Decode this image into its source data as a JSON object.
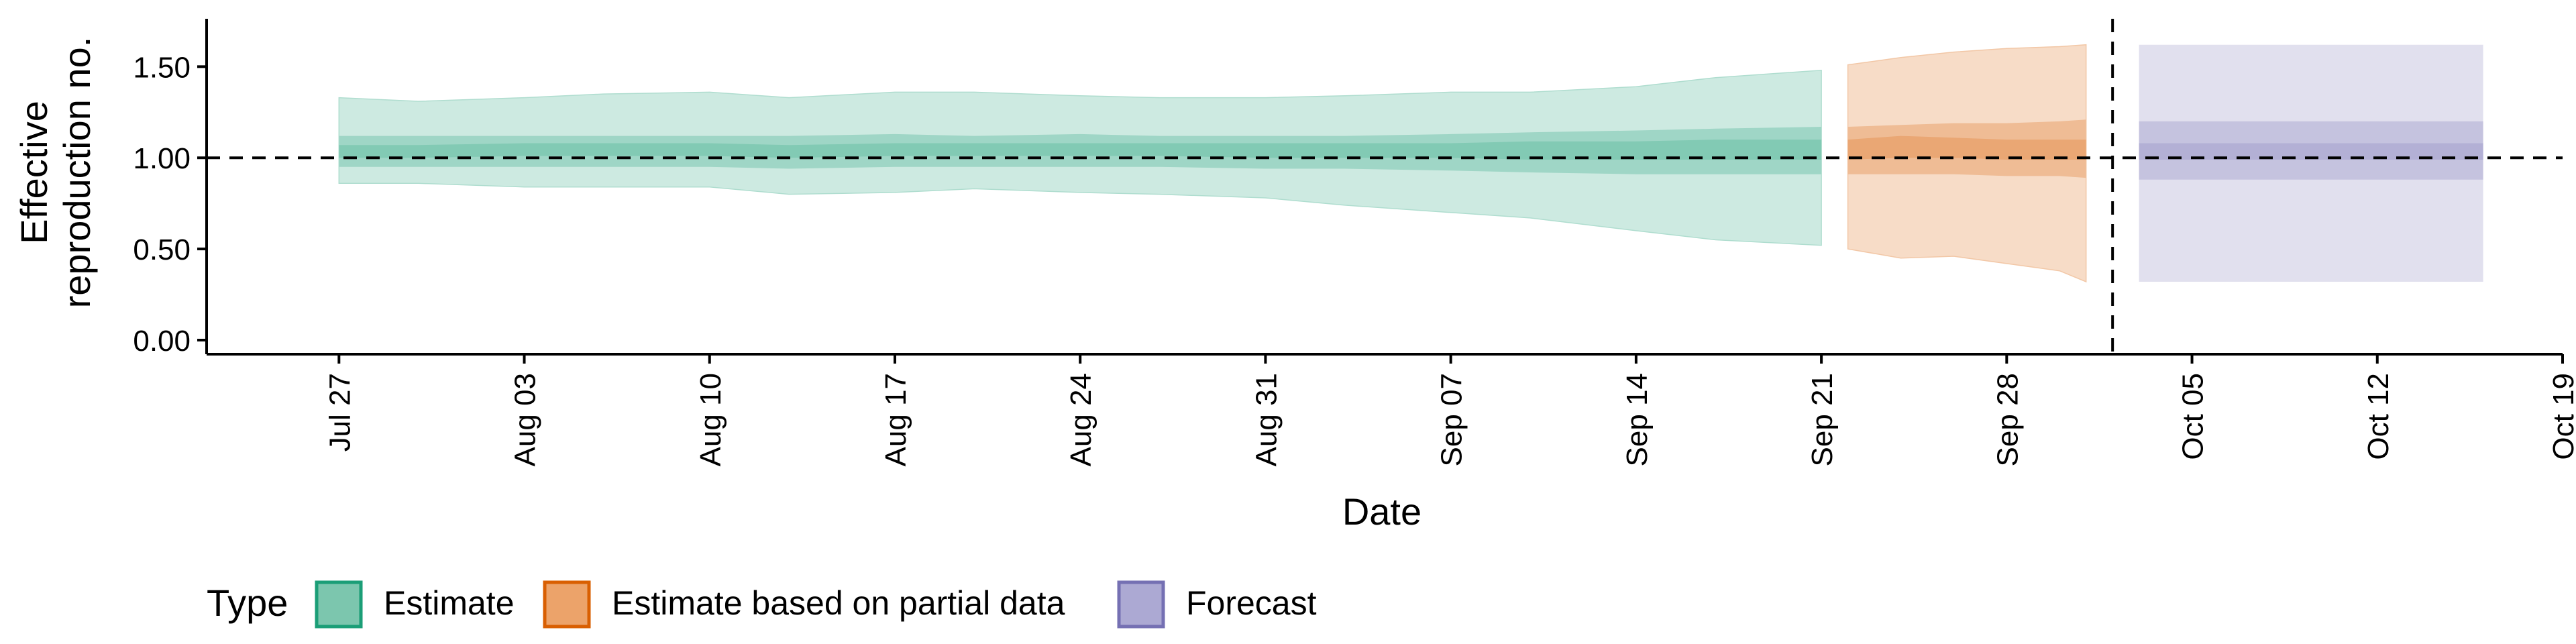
{
  "chart_data": {
    "type": "area",
    "title": "",
    "xlabel": "Date",
    "ylabel_lines": [
      "Effective",
      "reproduction no."
    ],
    "ylim": [
      0,
      1.7
    ],
    "yticks": [
      0.0,
      0.5,
      1.0,
      1.5
    ],
    "ytick_labels": [
      "0.00",
      "0.50",
      "1.00",
      "1.50"
    ],
    "xlim": [
      "2020-07-22",
      "2020-10-19"
    ],
    "xticks": [
      "2020-07-27",
      "2020-08-03",
      "2020-08-10",
      "2020-08-17",
      "2020-08-24",
      "2020-08-31",
      "2020-09-07",
      "2020-09-14",
      "2020-09-21",
      "2020-09-28",
      "2020-10-05",
      "2020-10-12",
      "2020-10-19"
    ],
    "xtick_labels": [
      "Jul 27",
      "Aug 03",
      "Aug 10",
      "Aug 17",
      "Aug 24",
      "Aug 31",
      "Sep 07",
      "Sep 14",
      "Sep 21",
      "Sep 28",
      "Oct 05",
      "Oct 12",
      "Oct 19"
    ],
    "reference_hline": 1.0,
    "reference_vline": "2020-10-02",
    "legend_title": "Type",
    "legend_position": "bottom",
    "series": [
      {
        "name": "Estimate",
        "color": "#1b9e77",
        "x": [
          "2020-07-27",
          "2020-07-30",
          "2020-08-03",
          "2020-08-06",
          "2020-08-10",
          "2020-08-13",
          "2020-08-17",
          "2020-08-20",
          "2020-08-24",
          "2020-08-27",
          "2020-08-31",
          "2020-09-03",
          "2020-09-07",
          "2020-09-10",
          "2020-09-14",
          "2020-09-17",
          "2020-09-21"
        ],
        "outer_lower": [
          0.86,
          0.86,
          0.84,
          0.84,
          0.84,
          0.8,
          0.81,
          0.83,
          0.81,
          0.8,
          0.78,
          0.74,
          0.7,
          0.67,
          0.6,
          0.55,
          0.52
        ],
        "outer_upper": [
          1.33,
          1.31,
          1.33,
          1.35,
          1.36,
          1.33,
          1.36,
          1.36,
          1.34,
          1.33,
          1.33,
          1.34,
          1.36,
          1.36,
          1.39,
          1.44,
          1.48
        ],
        "middle_lower": [
          0.95,
          0.95,
          0.95,
          0.95,
          0.95,
          0.94,
          0.95,
          0.95,
          0.95,
          0.95,
          0.94,
          0.94,
          0.93,
          0.92,
          0.91,
          0.91,
          0.91
        ],
        "middle_upper": [
          1.12,
          1.12,
          1.12,
          1.12,
          1.12,
          1.12,
          1.13,
          1.12,
          1.13,
          1.12,
          1.12,
          1.12,
          1.13,
          1.14,
          1.15,
          1.16,
          1.17
        ],
        "inner_lower": [
          1.0,
          1.0,
          1.01,
          1.01,
          1.01,
          1.0,
          1.01,
          1.01,
          1.01,
          1.01,
          1.0,
          1.0,
          1.0,
          0.99,
          0.99,
          0.99,
          0.99
        ],
        "inner_upper": [
          1.07,
          1.07,
          1.08,
          1.08,
          1.08,
          1.07,
          1.08,
          1.08,
          1.08,
          1.08,
          1.08,
          1.08,
          1.08,
          1.09,
          1.09,
          1.1,
          1.1
        ]
      },
      {
        "name": "Estimate based on partial data",
        "color": "#d95f02",
        "x": [
          "2020-09-22",
          "2020-09-24",
          "2020-09-26",
          "2020-09-28",
          "2020-09-30",
          "2020-10-01"
        ],
        "outer_lower": [
          0.5,
          0.45,
          0.46,
          0.42,
          0.38,
          0.32
        ],
        "outer_upper": [
          1.51,
          1.55,
          1.58,
          1.6,
          1.61,
          1.62
        ],
        "middle_lower": [
          0.91,
          0.91,
          0.91,
          0.9,
          0.9,
          0.89
        ],
        "middle_upper": [
          1.17,
          1.18,
          1.19,
          1.19,
          1.2,
          1.21
        ],
        "inner_lower": [
          0.99,
          1.0,
          1.0,
          0.99,
          0.99,
          0.99
        ],
        "inner_upper": [
          1.1,
          1.12,
          1.11,
          1.1,
          1.1,
          1.1
        ]
      },
      {
        "name": "Forecast",
        "color": "#7570b3",
        "x": [
          "2020-10-03",
          "2020-10-16"
        ],
        "outer_lower": [
          0.32,
          0.32
        ],
        "outer_upper": [
          1.62,
          1.62
        ],
        "middle_lower": [
          0.88,
          0.88
        ],
        "middle_upper": [
          1.2,
          1.2
        ],
        "inner_lower": [
          0.99,
          0.99
        ],
        "inner_upper": [
          1.08,
          1.08
        ]
      }
    ]
  }
}
